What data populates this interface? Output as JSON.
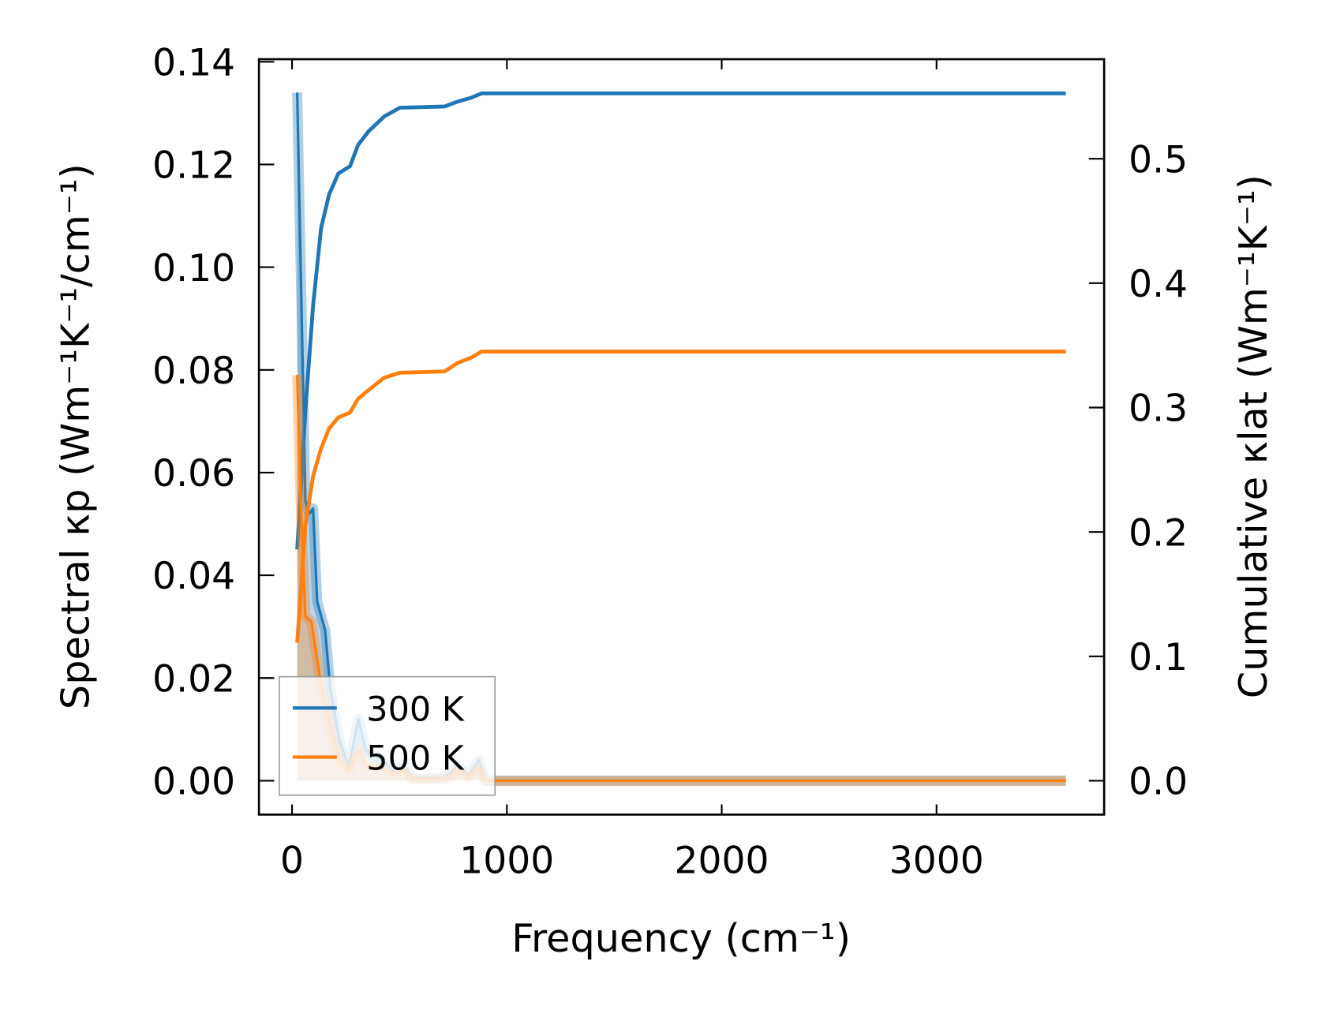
{
  "chart_data": {
    "type": "line",
    "xlabel": "Frequency (cm⁻¹)",
    "ylabel_left": "Spectral κp (Wm⁻¹K⁻¹/cm⁻¹)",
    "ylabel_right": "Cumulative κlat (Wm⁻¹K⁻¹)",
    "xlim": [
      -154,
      3780
    ],
    "ylim_left": [
      -0.0066,
      0.1405
    ],
    "ylim_right": [
      -0.0272,
      0.58
    ],
    "x_ticks": [
      "0",
      "1000",
      "2000",
      "3000"
    ],
    "x_tick_values": [
      0,
      1000,
      2000,
      3000
    ],
    "y_left_ticks": [
      "0.00",
      "0.02",
      "0.04",
      "0.06",
      "0.08",
      "0.10",
      "0.12",
      "0.14"
    ],
    "y_left_tick_values": [
      0,
      0.02,
      0.04,
      0.06,
      0.08,
      0.1,
      0.12,
      0.14
    ],
    "y_right_ticks": [
      "0.0",
      "0.1",
      "0.2",
      "0.3",
      "0.4",
      "0.5"
    ],
    "y_right_tick_values": [
      0,
      0.1,
      0.2,
      0.3,
      0.4,
      0.5
    ],
    "legend": {
      "placement": "lower-left",
      "entries": [
        "300 K",
        "500 K"
      ]
    },
    "grid": false,
    "series": [
      {
        "name": "300 K",
        "color": "#1f77b4",
        "spectral": {
          "x": [
            24,
            62,
            80,
            98,
            117,
            154,
            178,
            221,
            264,
            309,
            343,
            419,
            470,
            520,
            560,
            710,
            772,
            820,
            870,
            900,
            3602
          ],
          "y": [
            0.134,
            0.0545,
            0.052,
            0.053,
            0.0349,
            0.0293,
            0.018,
            0.0078,
            0.0027,
            0.012,
            0.006,
            0.004,
            0.002,
            0.003,
            0.0005,
            0.0005,
            0.003,
            0.001,
            0.004,
            0.0,
            0.0
          ]
        },
        "cumulative": {
          "x": [
            24,
            62,
            98,
            135,
            172,
            215,
            270,
            307,
            356,
            429,
            502,
            710,
            772,
            833,
            882,
            3602
          ],
          "y": [
            0.186,
            0.2975,
            0.382,
            0.444,
            0.471,
            0.488,
            0.494,
            0.511,
            0.522,
            0.534,
            0.541,
            0.542,
            0.546,
            0.549,
            0.5525,
            0.5525
          ]
        }
      },
      {
        "name": "500 K",
        "color": "#ff7f0e",
        "spectral": {
          "x": [
            24,
            40,
            62,
            90,
            130,
            180,
            220,
            264,
            309,
            343,
            419,
            470,
            520,
            560,
            710,
            772,
            820,
            870,
            900,
            3602
          ],
          "y": [
            0.079,
            0.055,
            0.032,
            0.031,
            0.02,
            0.01,
            0.004,
            0.002,
            0.006,
            0.003,
            0.0025,
            0.0012,
            0.002,
            0.0003,
            0.0003,
            0.002,
            0.0007,
            0.0025,
            0.0,
            0.0
          ]
        },
        "cumulative": {
          "x": [
            24,
            62,
            98,
            135,
            172,
            215,
            270,
            307,
            356,
            429,
            502,
            710,
            772,
            833,
            882,
            3602
          ],
          "y": [
            0.111,
            0.205,
            0.245,
            0.267,
            0.283,
            0.292,
            0.296,
            0.307,
            0.314,
            0.324,
            0.328,
            0.329,
            0.336,
            0.34,
            0.345,
            0.345
          ]
        }
      }
    ]
  }
}
